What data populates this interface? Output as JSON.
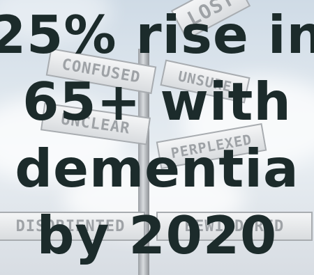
{
  "background": {
    "sky_color": "#dfe7ee",
    "sign_color": "#9ea2a6",
    "signs": [
      "LOST",
      "CONFUSED",
      "UNSURE",
      "UNCLEAR",
      "PERPLEXED",
      "DISORIENTED",
      "BEWILDERED"
    ]
  },
  "headline": {
    "color": "#1c2b2b",
    "lines": [
      "25% rise in",
      "65+ with",
      "dementia",
      "by 2020"
    ]
  }
}
